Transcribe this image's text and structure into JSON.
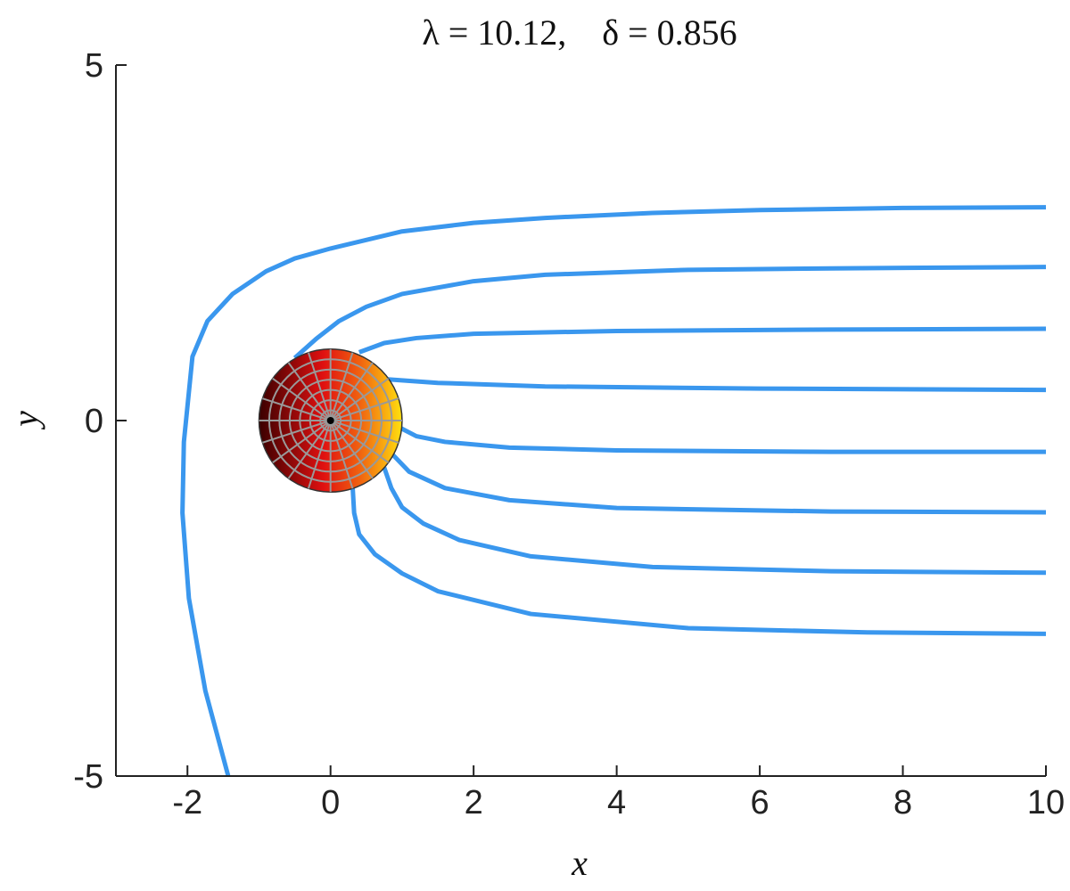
{
  "chart_data": {
    "type": "line",
    "title": "λ = 10.12,    δ = 0.856",
    "x_label": "x",
    "y_label": "y",
    "xlim": [
      -3,
      10
    ],
    "ylim": [
      -5,
      5
    ],
    "xticks": [
      -2,
      0,
      2,
      4,
      6,
      8,
      10
    ],
    "yticks": [
      -5,
      0,
      5
    ],
    "disk": {
      "x": 0,
      "y": 0,
      "r": 1
    },
    "series": [
      {
        "color": "#3a97ee",
        "x": [
          -1.43,
          -1.75,
          -1.98,
          -2.07,
          -2.05,
          -1.93,
          -1.72,
          -1.37,
          -0.9,
          -0.5,
          0,
          1.0,
          2.0,
          3.0,
          4.5,
          6,
          8,
          10
        ],
        "values": [
          -5,
          -3.8,
          -2.5,
          -1.3,
          -0.3,
          0.9,
          1.4,
          1.78,
          2.1,
          2.28,
          2.42,
          2.66,
          2.78,
          2.85,
          2.92,
          2.96,
          2.99,
          3.0
        ]
      },
      {
        "color": "#3a97ee",
        "x": [
          -0.5,
          -0.2,
          0.12,
          0.5,
          1.0,
          2.0,
          3.0,
          5,
          7,
          10
        ],
        "values": [
          0.88,
          1.15,
          1.4,
          1.6,
          1.78,
          1.96,
          2.05,
          2.12,
          2.14,
          2.16
        ]
      },
      {
        "color": "#3a97ee",
        "x": [
          0.4,
          0.75,
          1.2,
          2,
          4,
          7,
          10
        ],
        "values": [
          0.96,
          1.09,
          1.16,
          1.22,
          1.26,
          1.28,
          1.29
        ]
      },
      {
        "color": "#3a97ee",
        "x": [
          0.8,
          1.5,
          3,
          6,
          10
        ],
        "values": [
          0.58,
          0.53,
          0.48,
          0.45,
          0.43
        ]
      },
      {
        "color": "#3a97ee",
        "x": [
          0.97,
          1.2,
          1.6,
          2.5,
          4,
          7,
          10
        ],
        "values": [
          -0.1,
          -0.22,
          -0.3,
          -0.38,
          -0.42,
          -0.44,
          -0.44
        ]
      },
      {
        "color": "#3a97ee",
        "x": [
          0.87,
          1.1,
          1.6,
          2.5,
          4,
          7,
          10
        ],
        "values": [
          -0.48,
          -0.72,
          -0.95,
          -1.12,
          -1.23,
          -1.28,
          -1.29
        ]
      },
      {
        "color": "#3a97ee",
        "x": [
          0.75,
          0.85,
          1.0,
          1.3,
          1.8,
          2.8,
          4.5,
          7,
          10
        ],
        "values": [
          -0.66,
          -0.95,
          -1.22,
          -1.45,
          -1.68,
          -1.91,
          -2.06,
          -2.12,
          -2.14
        ]
      },
      {
        "color": "#3a97ee",
        "x": [
          0.31,
          0.33,
          0.4,
          0.62,
          1.0,
          1.5,
          2.8,
          5,
          7.5,
          10
        ],
        "values": [
          -0.95,
          -1.3,
          -1.6,
          -1.88,
          -2.15,
          -2.4,
          -2.72,
          -2.92,
          -2.98,
          -3.0
        ]
      }
    ]
  }
}
